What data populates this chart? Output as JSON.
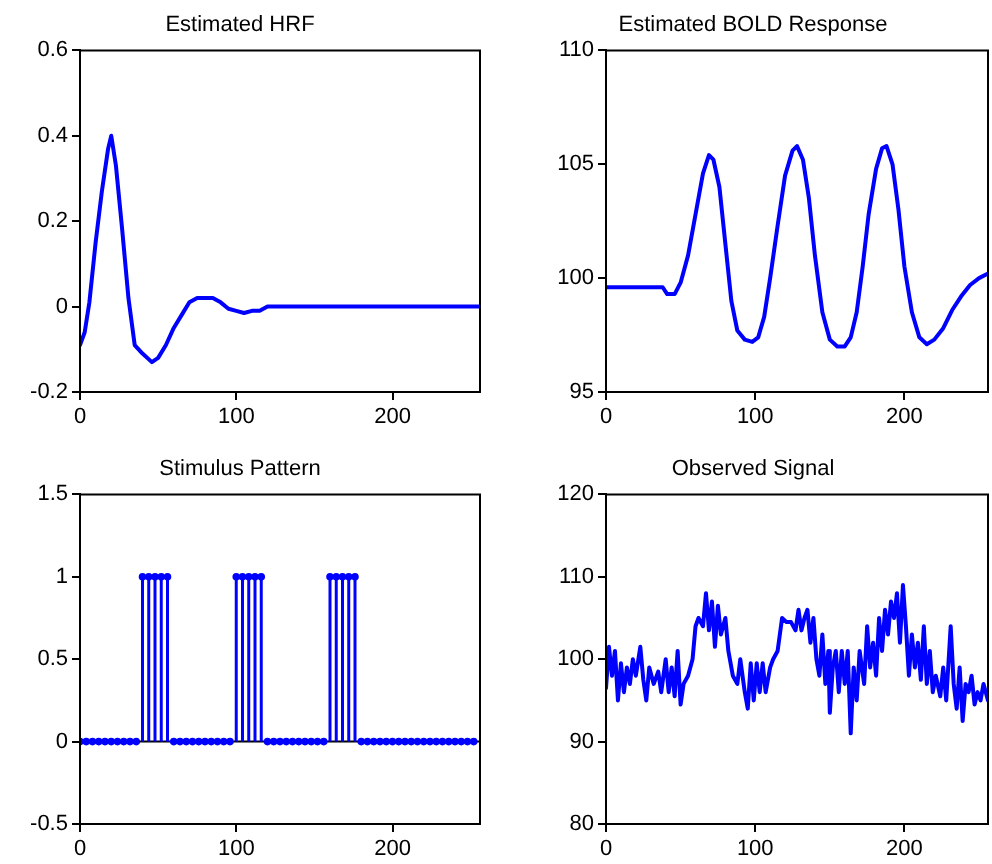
{
  "chart_data": [
    {
      "type": "line",
      "title": "Estimated HRF",
      "color": "#0000ff",
      "marker": "none",
      "line_style": "solid",
      "x": [
        0,
        3,
        6,
        10,
        14,
        18,
        20,
        23,
        27,
        31,
        35,
        40,
        46,
        50,
        55,
        60,
        65,
        70,
        75,
        85,
        90,
        95,
        100,
        105,
        110,
        115,
        120,
        255
      ],
      "values": [
        -0.09,
        -0.06,
        0.01,
        0.15,
        0.27,
        0.37,
        0.4,
        0.33,
        0.18,
        0.02,
        -0.09,
        -0.11,
        -0.13,
        -0.12,
        -0.09,
        -0.05,
        -0.02,
        0.01,
        0.02,
        0.02,
        0.01,
        -0.005,
        -0.01,
        -0.015,
        -0.01,
        -0.01,
        0,
        0
      ],
      "xlim": [
        0,
        256
      ],
      "xticks": [
        0,
        100,
        200
      ],
      "ylim": [
        -0.2,
        0.6
      ],
      "yticks": [
        -0.2,
        0,
        0.2,
        0.4,
        0.6
      ]
    },
    {
      "type": "line",
      "title": "Estimated BOLD Response",
      "color": "#0000ff",
      "marker": "none",
      "line_style": "solid",
      "x": [
        0,
        38,
        41,
        46,
        50,
        55,
        60,
        65,
        69,
        72,
        76,
        80,
        84,
        88,
        93,
        98,
        102,
        106,
        110,
        115,
        120,
        125,
        128,
        132,
        136,
        140,
        145,
        150,
        155,
        160,
        164,
        168,
        172,
        176,
        181,
        185,
        188,
        192,
        196,
        200,
        205,
        210,
        215,
        220,
        226,
        232,
        238,
        244,
        250,
        256
      ],
      "values": [
        99.6,
        99.6,
        99.3,
        99.3,
        99.8,
        101,
        102.8,
        104.6,
        105.4,
        105.2,
        104,
        101.5,
        99,
        97.7,
        97.3,
        97.2,
        97.4,
        98.3,
        100,
        102.3,
        104.5,
        105.6,
        105.8,
        105.2,
        103.5,
        101,
        98.5,
        97.3,
        97,
        97,
        97.4,
        98.5,
        100.5,
        102.8,
        104.8,
        105.7,
        105.8,
        105,
        103,
        100.5,
        98.5,
        97.4,
        97.1,
        97.3,
        97.8,
        98.6,
        99.2,
        99.7,
        100,
        100.2
      ],
      "xlim": [
        0,
        256
      ],
      "xticks": [
        0,
        100,
        200
      ],
      "ylim": [
        95,
        110
      ],
      "yticks": [
        95,
        100,
        105,
        110
      ]
    },
    {
      "type": "lollipop",
      "title": "Stimulus Pattern",
      "color": "#0000ff",
      "marker": "circle",
      "x": [
        0,
        4,
        8,
        12,
        16,
        20,
        24,
        28,
        32,
        36,
        40,
        44,
        48,
        52,
        56,
        60,
        64,
        68,
        72,
        76,
        80,
        84,
        88,
        92,
        96,
        100,
        104,
        108,
        112,
        116,
        120,
        124,
        128,
        132,
        136,
        140,
        144,
        148,
        152,
        156,
        160,
        164,
        168,
        172,
        176,
        180,
        184,
        188,
        192,
        196,
        200,
        204,
        208,
        212,
        216,
        220,
        224,
        228,
        232,
        236,
        240,
        244,
        248,
        252
      ],
      "values": [
        0,
        0,
        0,
        0,
        0,
        0,
        0,
        0,
        0,
        0,
        1,
        1,
        1,
        1,
        1,
        0,
        0,
        0,
        0,
        0,
        0,
        0,
        0,
        0,
        0,
        1,
        1,
        1,
        1,
        1,
        0,
        0,
        0,
        0,
        0,
        0,
        0,
        0,
        0,
        0,
        1,
        1,
        1,
        1,
        1,
        0,
        0,
        0,
        0,
        0,
        0,
        0,
        0,
        0,
        0,
        0,
        0,
        0,
        0,
        0,
        0,
        0,
        0,
        0
      ],
      "ref_lines": [
        {
          "axis": "y",
          "value": 0,
          "color": "#000000"
        }
      ],
      "xlim": [
        0,
        256
      ],
      "xticks": [
        0,
        100,
        200
      ],
      "ylim": [
        -0.5,
        1.5
      ],
      "yticks": [
        -0.5,
        0,
        0.5,
        1,
        1.5
      ]
    },
    {
      "type": "line",
      "title": "Observed Signal",
      "color": "#0000ff",
      "marker": "none",
      "line_style": "solid",
      "x": [
        0,
        2,
        4,
        6,
        8,
        10,
        12,
        14,
        16,
        18,
        20,
        23,
        25,
        27,
        29,
        32,
        35,
        37,
        40,
        42,
        44,
        46,
        48,
        50,
        52,
        55,
        58,
        60,
        62,
        65,
        67,
        69,
        71,
        73,
        75,
        77,
        80,
        82,
        85,
        88,
        90,
        93,
        95,
        97,
        99,
        101,
        103,
        105,
        107,
        110,
        112,
        115,
        118,
        121,
        124,
        127,
        129,
        131,
        133,
        135,
        137,
        139,
        141,
        143,
        145,
        147,
        149,
        150,
        152,
        154,
        156,
        158,
        160,
        162,
        164,
        166,
        168,
        170,
        173,
        175,
        177,
        179,
        181,
        183,
        185,
        187,
        189,
        191,
        193,
        195,
        197,
        199,
        201,
        203,
        205,
        207,
        209,
        211,
        213,
        215,
        217,
        219,
        221,
        224,
        226,
        228,
        231,
        233,
        235,
        237,
        239,
        241,
        243,
        245,
        247,
        249,
        251,
        253,
        256
      ],
      "values": [
        96.5,
        101.5,
        98,
        101,
        95,
        99.5,
        96,
        99,
        97,
        100,
        98,
        101.5,
        97.5,
        95,
        99,
        97,
        98.5,
        96,
        100,
        96,
        99,
        95.5,
        101,
        94.5,
        97,
        98,
        100,
        104,
        105,
        104,
        108,
        103.5,
        107,
        101.5,
        106.5,
        103,
        105,
        101,
        98,
        97,
        100,
        96,
        94,
        99.5,
        95,
        99.5,
        96,
        99.5,
        96,
        99,
        100,
        101,
        105,
        104.5,
        104.5,
        103.5,
        106,
        103.5,
        105,
        106,
        102,
        105,
        100,
        98,
        103,
        97,
        101,
        93.5,
        99,
        101,
        96,
        101,
        97,
        101,
        91,
        99,
        95,
        101,
        97,
        104,
        99,
        102,
        98,
        105,
        101,
        106,
        103,
        107,
        105,
        108,
        102,
        109,
        104,
        98,
        103,
        99,
        102,
        97.5,
        104,
        97,
        101,
        96,
        98,
        95.5,
        99,
        95,
        104,
        97,
        94,
        99,
        92.5,
        97,
        96,
        98,
        94.5,
        96,
        95,
        97,
        95
      ],
      "xlim": [
        0,
        256
      ],
      "xticks": [
        0,
        100,
        200
      ],
      "ylim": [
        80,
        120
      ],
      "yticks": [
        80,
        90,
        100,
        110,
        120
      ]
    }
  ]
}
